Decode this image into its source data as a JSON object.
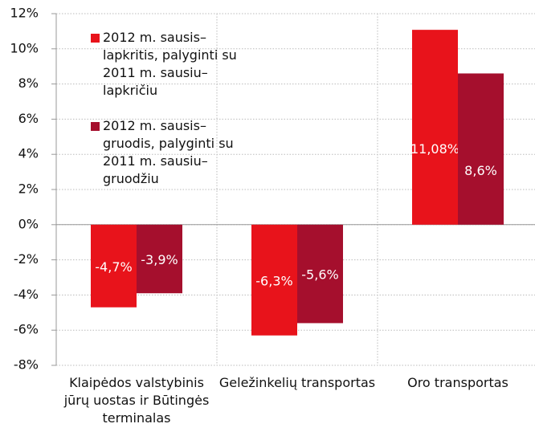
{
  "chart_data": {
    "type": "bar",
    "categories": [
      "Klaipėdos valstybinis jūrų uostas ir Būtingės terminalas",
      "Geležinkelių transportas",
      "Oro transportas"
    ],
    "series": [
      {
        "name": "2012 m. sausis–lapkritis, palyginti su 2011 m. sausiu–lapkričiu",
        "color": "#e8131b",
        "values": [
          -4.7,
          -6.3,
          11.08
        ],
        "value_labels": [
          "-4,7%",
          "-6,3%",
          "11,08%"
        ]
      },
      {
        "name": "2012 m. sausis–gruodis, palyginti su 2011 m. sausiu–gruodžiu",
        "color": "#a50f2d",
        "values": [
          -3.9,
          -5.6,
          8.6
        ],
        "value_labels": [
          "-3,9%",
          "-5,6%",
          "8,6%"
        ]
      }
    ],
    "ylim": [
      -8,
      12
    ],
    "yticks": [
      {
        "value": -8,
        "label": "-8%"
      },
      {
        "value": -6,
        "label": "-6%"
      },
      {
        "value": -4,
        "label": "-4%"
      },
      {
        "value": -2,
        "label": "-2%"
      },
      {
        "value": 0,
        "label": "0%"
      },
      {
        "value": 2,
        "label": "2%"
      },
      {
        "value": 4,
        "label": "4%"
      },
      {
        "value": 6,
        "label": "6%"
      },
      {
        "value": 8,
        "label": "8%"
      },
      {
        "value": 10,
        "label": "10%"
      },
      {
        "value": 12,
        "label": "12%"
      }
    ],
    "grid": true
  }
}
